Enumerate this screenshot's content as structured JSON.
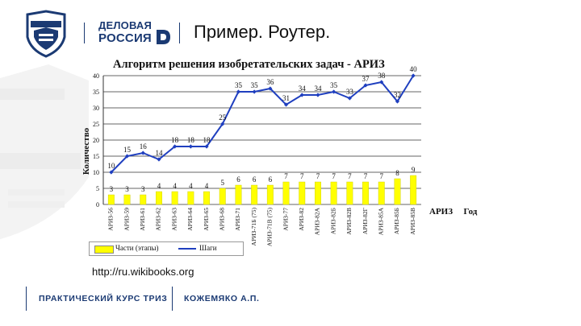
{
  "header": {
    "brand_line1": "ДЕЛОВАЯ",
    "brand_line2": "РОССИЯ",
    "slide_title": "Пример. Роутер."
  },
  "chart_data": {
    "type": "bar",
    "title": "Алгоритм решения изобретательских задач - АРИЗ",
    "ylabel": "Количество",
    "x_extra_labels": [
      "АРИЗ",
      "Год"
    ],
    "ylim": [
      0,
      40
    ],
    "yticks": [
      0,
      5,
      10,
      15,
      20,
      25,
      30,
      35,
      40
    ],
    "grid": true,
    "categories": [
      "АРИЗ-56",
      "АРИЗ-59",
      "АРИЗ-61",
      "АРИЗ-62",
      "АРИЗ-63",
      "АРИЗ-64",
      "АРИЗ-65",
      "АРИЗ-68",
      "АРИЗ-71",
      "АРИЗ-71Б (75)",
      "АРИЗ-71В (75)",
      "АРИЗ-77",
      "АРИЗ-82",
      "АРИЗ-82А",
      "АРИЗ-82Б",
      "АРИЗ-82В",
      "АРИЗ-82Г",
      "АРИЗ-85А",
      "АРИЗ-85Б",
      "АРИЗ-85В"
    ],
    "series": [
      {
        "name": "Части (этапы)",
        "kind": "bar",
        "color": "#ffff00",
        "values": [
          3,
          3,
          3,
          4,
          4,
          4,
          4,
          5,
          6,
          6,
          6,
          7,
          7,
          7,
          7,
          7,
          7,
          7,
          8,
          9
        ],
        "labels": [
          "3",
          "3",
          "3",
          "4",
          "4",
          "4",
          "4",
          "5",
          "6",
          "6",
          "6",
          "7",
          "7",
          "7",
          "7",
          "7",
          "7",
          "7",
          "8",
          "9"
        ]
      },
      {
        "name": "Шаги",
        "kind": "line",
        "color": "#1f3fbf",
        "values": [
          10,
          15,
          16,
          14,
          18,
          18,
          18,
          25,
          35,
          35,
          36,
          31,
          34,
          34,
          35,
          33,
          37,
          38,
          32,
          40
        ],
        "labels": [
          "10",
          "15",
          "16",
          "14",
          "18",
          "18",
          "18",
          "25",
          "35",
          "35",
          "36",
          "31",
          "34",
          "34",
          "35",
          "33",
          "37",
          "38",
          "32",
          "40"
        ]
      }
    ]
  },
  "source_url": "http://ru.wikibooks.org",
  "footer": {
    "course": "ПРАКТИЧЕСКИЙ КУРС ТРИЗ",
    "author": "КОЖЕМЯКО А.П."
  }
}
